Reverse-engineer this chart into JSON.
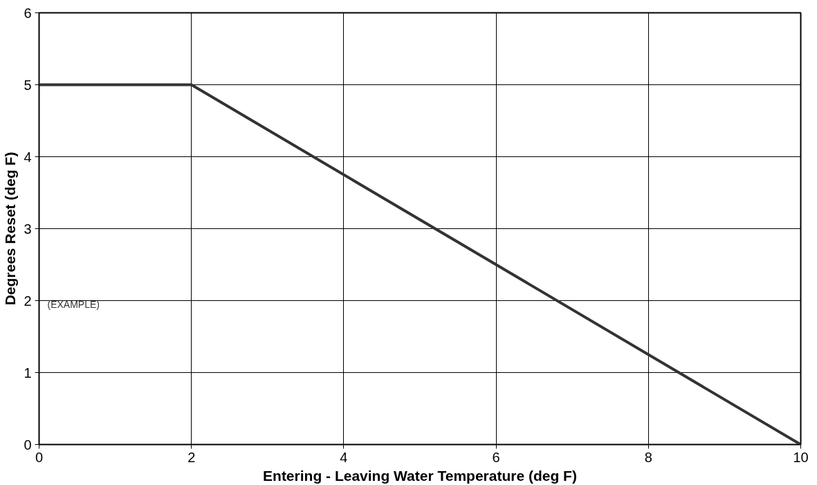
{
  "chart_data": {
    "type": "line",
    "xlabel": "Entering - Leaving Water Temperature (deg F)",
    "ylabel": "Degrees Reset (deg F)",
    "x": [
      0,
      2,
      10
    ],
    "series": [
      {
        "color": "#333333",
        "values": [
          5,
          5,
          0
        ]
      }
    ],
    "xlim": [
      0,
      10
    ],
    "xticks": [
      0,
      2,
      4,
      6,
      8,
      10
    ],
    "ylim": [
      0,
      6
    ],
    "yticks": [
      0,
      1,
      2,
      3,
      4,
      5,
      6
    ],
    "grid": true,
    "marker": "none",
    "line_style": "solid",
    "annotations": [
      "(EXAMPLE)"
    ]
  }
}
